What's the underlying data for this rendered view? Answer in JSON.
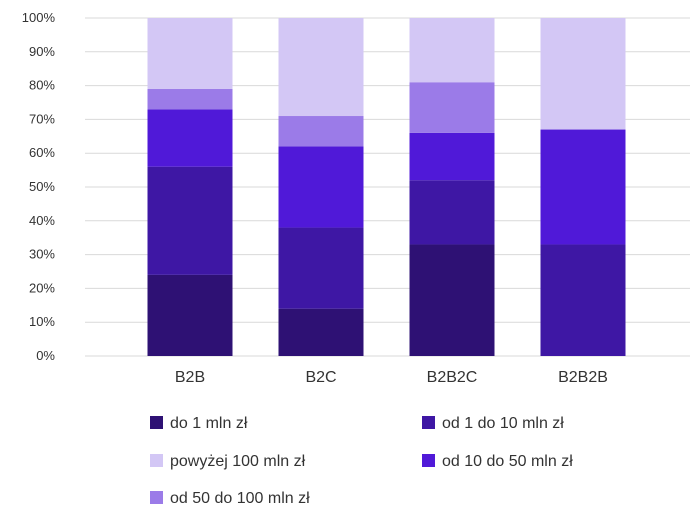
{
  "chart_data": {
    "type": "bar",
    "stacked": true,
    "categories": [
      "B2B",
      "B2C",
      "B2B2C",
      "B2B2B"
    ],
    "y_ticks": [
      "0%",
      "10%",
      "20%",
      "30%",
      "40%",
      "50%",
      "60%",
      "70%",
      "80%",
      "90%",
      "100%"
    ],
    "ylim": [
      0,
      100
    ],
    "grid": true,
    "legend_position": "bottom",
    "series": [
      {
        "name": "do 1 mln zł",
        "color": "#2e1174",
        "values": [
          24,
          14,
          33,
          0
        ]
      },
      {
        "name": "od 1 do 10 mln zł",
        "color": "#3e17a4",
        "values": [
          32,
          24,
          19,
          33
        ]
      },
      {
        "name": "od 10 do 50 mln zł",
        "color": "#5019d8",
        "values": [
          17,
          24,
          14,
          34
        ]
      },
      {
        "name": "od 50 do 100 mln zł",
        "color": "#9b7be8",
        "values": [
          6,
          9,
          15,
          0
        ]
      },
      {
        "name": "powyżej 100 mln zł",
        "color": "#d3c7f5",
        "values": [
          21,
          29,
          19,
          33
        ]
      }
    ],
    "legend_order": [
      "do 1 mln zł",
      "od 1 do 10 mln zł",
      "powyżej 100 mln zł",
      "od 10 do 50 mln zł",
      "od 50 do 100 mln zł"
    ]
  }
}
